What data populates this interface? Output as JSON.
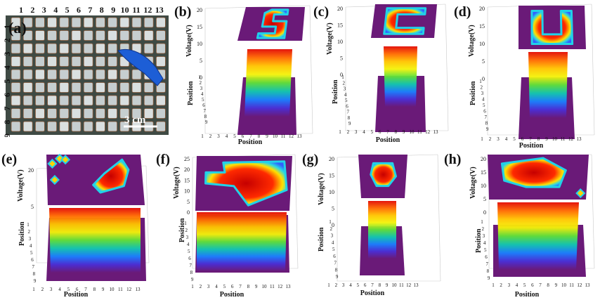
{
  "photo": {
    "panel_label": "(a)",
    "column_numbers": [
      "1",
      "2",
      "3",
      "4",
      "5",
      "6",
      "7",
      "8",
      "9",
      "10",
      "11",
      "12",
      "13"
    ],
    "row_numbers": [
      "1",
      "2",
      "3",
      "4",
      "5",
      "6",
      "7",
      "8",
      "9"
    ],
    "scale_bar_text": "3 cm"
  },
  "chart_data": [
    {
      "panel": "(b)",
      "type": "3d-surface",
      "pattern_letter": "S",
      "xlabel": "Position",
      "ylabel": "Position",
      "zlabel": "Voltage(V)",
      "x_ticks": [
        "1",
        "2",
        "3",
        "4",
        "5",
        "6",
        "7",
        "8",
        "9",
        "10",
        "11",
        "12",
        "13"
      ],
      "y_ticks": [
        "1",
        "2",
        "3",
        "4",
        "5",
        "6",
        "7",
        "8",
        "9"
      ],
      "z_ticks": [
        "0",
        "5",
        "10",
        "15",
        "20"
      ],
      "zlim": [
        0,
        20
      ],
      "peak_voltage": 20
    },
    {
      "panel": "(c)",
      "type": "3d-surface",
      "pattern_letter": "C",
      "xlabel": "Position",
      "ylabel": "Position",
      "zlabel": "Voltage(V)",
      "x_ticks": [
        "1",
        "2",
        "3",
        "4",
        "5",
        "6",
        "7",
        "8",
        "9",
        "10",
        "11",
        "12",
        "13"
      ],
      "y_ticks": [
        "1",
        "2",
        "3",
        "4",
        "5",
        "6",
        "7",
        "8",
        "9"
      ],
      "z_ticks": [
        "0",
        "5",
        "10",
        "15",
        "20"
      ],
      "zlim": [
        0,
        20
      ],
      "peak_voltage": 20
    },
    {
      "panel": "(d)",
      "type": "3d-surface",
      "pattern_letter": "U",
      "xlabel": "Position",
      "ylabel": "Position",
      "zlabel": "Voltage(V)",
      "x_ticks": [
        "1",
        "2",
        "3",
        "4",
        "5",
        "6",
        "7",
        "8",
        "9",
        "10",
        "11",
        "12",
        "13"
      ],
      "y_ticks": [
        "1",
        "2",
        "3",
        "4",
        "5",
        "6",
        "7",
        "8",
        "9"
      ],
      "z_ticks": [
        "0",
        "5",
        "10",
        "15",
        "20"
      ],
      "zlim": [
        0,
        20
      ],
      "peak_voltage": 20
    },
    {
      "panel": "(e)",
      "type": "3d-surface",
      "pattern": "scattered-points",
      "xlabel": "Position",
      "ylabel": "Position",
      "zlabel": "Voltage(V)",
      "x_ticks": [
        "1",
        "2",
        "3",
        "4",
        "5",
        "6",
        "7",
        "8",
        "9",
        "10",
        "11",
        "12",
        "13"
      ],
      "y_ticks": [
        "1",
        "2",
        "3",
        "4",
        "5",
        "6",
        "7",
        "8",
        "9"
      ],
      "z_ticks": [
        "5",
        "20"
      ],
      "zlim": [
        0,
        20
      ],
      "peak_voltage": 20
    },
    {
      "panel": "(f)",
      "type": "3d-surface",
      "pattern": "large-region",
      "xlabel": "Position",
      "ylabel": "Position",
      "zlabel": "Voltage(V)",
      "x_ticks": [
        "1",
        "2",
        "3",
        "4",
        "5",
        "6",
        "7",
        "8",
        "9",
        "10",
        "11",
        "12",
        "13"
      ],
      "y_ticks": [
        "1",
        "2",
        "3",
        "4",
        "5",
        "6",
        "7",
        "8",
        "9"
      ],
      "z_ticks": [
        "0",
        "5",
        "10",
        "15",
        "20",
        "25"
      ],
      "zlim": [
        0,
        25
      ],
      "peak_voltage": 25
    },
    {
      "panel": "(g)",
      "type": "3d-surface",
      "pattern": "single-blob",
      "xlabel": "Position",
      "ylabel": "Position",
      "zlabel": "Voltage(V)",
      "x_ticks": [
        "1",
        "2",
        "3",
        "4",
        "5",
        "6",
        "7",
        "8",
        "9",
        "10",
        "11",
        "12",
        "13"
      ],
      "y_ticks": [
        "1",
        "2",
        "3",
        "4",
        "5",
        "6",
        "7",
        "8",
        "9"
      ],
      "z_ticks": [
        "0",
        "5",
        "10",
        "15",
        "20"
      ],
      "zlim": [
        0,
        20
      ],
      "peak_voltage": 20
    },
    {
      "panel": "(h)",
      "type": "3d-surface",
      "pattern": "wide-blob",
      "xlabel": "Position",
      "ylabel": "Position",
      "zlabel": "Voltage(V)",
      "x_ticks": [
        "1",
        "2",
        "3",
        "4",
        "5",
        "6",
        "7",
        "8",
        "9",
        "10",
        "11",
        "12",
        "13"
      ],
      "y_ticks": [
        "1",
        "2",
        "3",
        "4",
        "5",
        "6",
        "7",
        "8",
        "9"
      ],
      "z_ticks": [
        "0",
        "5",
        "10",
        "15",
        "20"
      ],
      "zlim": [
        0,
        20
      ],
      "peak_voltage": 20
    }
  ],
  "colors": {
    "background_plane": "#6a1a78",
    "peak": "#e10f06",
    "mid": "#ffe800",
    "low": "#1a6cff",
    "photo_bg": "#3f4a44",
    "hand": "#1d5ed6"
  }
}
